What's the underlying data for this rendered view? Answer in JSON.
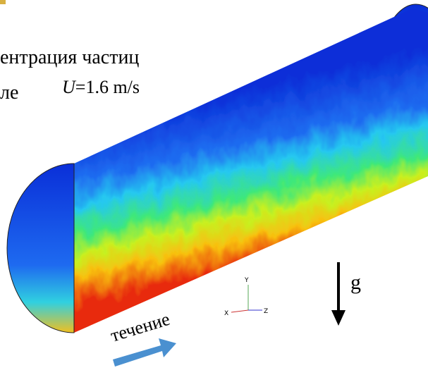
{
  "labels": {
    "title_line1": "ентрация частиц",
    "title_line2": "ле",
    "velocity_symbol": "U",
    "velocity_value": "=1.6 m/s",
    "gravity": "g",
    "flow": "течение",
    "axis_y": "Y",
    "axis_x": "X",
    "axis_z": "Z"
  }
}
